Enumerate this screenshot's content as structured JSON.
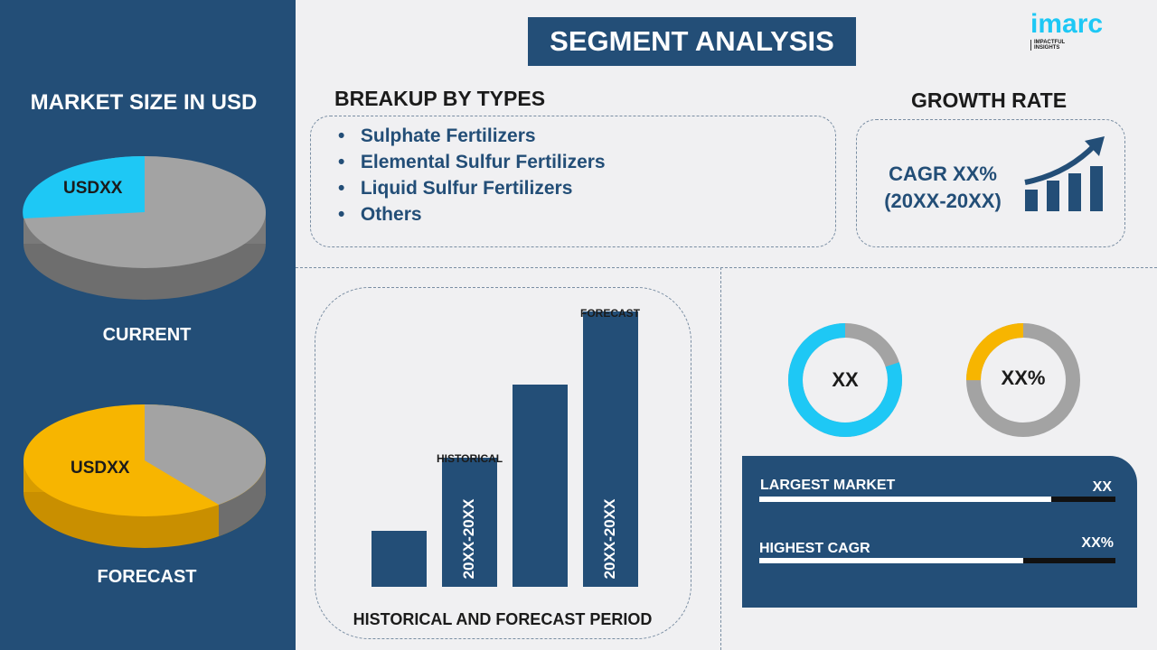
{
  "logo": {
    "brand": "imarc",
    "tagline": "IMPACTFUL INSIGHTS"
  },
  "title": "SEGMENT ANALYSIS",
  "left": {
    "heading": "MARKET SIZE IN USD",
    "current": {
      "label": "CURRENT",
      "value": "USDXX",
      "share": 0.25,
      "color": "#1ec8f5"
    },
    "forecast": {
      "label": "FORECAST",
      "value": "USDXX",
      "share": 0.6,
      "color": "#f7b500"
    }
  },
  "types": {
    "heading": "BREAKUP BY TYPES",
    "items": [
      "Sulphate Fertilizers",
      "Elemental Sulfur Fertilizers",
      "Liquid Sulfur Fertilizers",
      "Others"
    ]
  },
  "growth": {
    "heading": "GROWTH RATE",
    "cagr": "CAGR XX%",
    "period": "(20XX-20XX)"
  },
  "period_chart": {
    "historical_label": "HISTORICAL",
    "forecast_label": "FORECAST",
    "historical_range": "20XX-20XX",
    "forecast_range": "20XX-20XX",
    "caption": "HISTORICAL AND FORECAST PERIOD"
  },
  "donuts": [
    {
      "value": "XX",
      "share": 0.8,
      "color": "#1ec8f5"
    },
    {
      "value": "XX%",
      "share": 0.25,
      "color": "#f7b500"
    }
  ],
  "stats": [
    {
      "label": "LARGEST MARKET",
      "value": "XX",
      "fill": 0.82
    },
    {
      "label": "HIGHEST CAGR",
      "value": "XX%",
      "fill": 0.74
    }
  ],
  "colors": {
    "navy": "#234e77",
    "cyan": "#1ec8f5",
    "yellow": "#f7b500",
    "gray": "#a3a3a3"
  }
}
